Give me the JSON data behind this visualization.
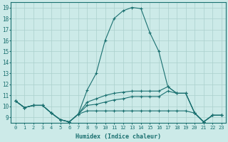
{
  "xlabel": "Humidex (Indice chaleur)",
  "xlim": [
    -0.5,
    23.5
  ],
  "ylim": [
    8.5,
    19.5
  ],
  "yticks": [
    9,
    10,
    11,
    12,
    13,
    14,
    15,
    16,
    17,
    18,
    19
  ],
  "xticks": [
    0,
    1,
    2,
    3,
    4,
    5,
    6,
    7,
    8,
    9,
    10,
    11,
    12,
    13,
    14,
    15,
    16,
    17,
    18,
    19,
    20,
    21,
    22,
    23
  ],
  "bg_color": "#cceae8",
  "grid_color": "#aacfcc",
  "line_color": "#1a7070",
  "lines": [
    {
      "x": [
        0,
        1,
        2,
        3,
        4,
        5,
        6,
        7,
        8,
        9,
        10,
        11,
        12,
        13,
        14,
        15,
        16,
        17,
        18,
        19,
        20,
        21,
        22,
        23
      ],
      "y": [
        10.5,
        9.9,
        10.1,
        10.1,
        9.4,
        8.8,
        8.6,
        9.3,
        11.5,
        13.0,
        16.0,
        18.0,
        18.7,
        19.0,
        18.9,
        16.7,
        15.0,
        11.8,
        11.2,
        11.2,
        9.4,
        8.6,
        9.2,
        9.2
      ]
    },
    {
      "x": [
        0,
        1,
        2,
        3,
        4,
        5,
        6,
        7,
        8,
        9,
        10,
        11,
        12,
        13,
        14,
        15,
        16,
        17,
        18,
        19,
        20,
        21,
        22,
        23
      ],
      "y": [
        10.5,
        9.9,
        10.1,
        10.1,
        9.4,
        8.8,
        8.6,
        9.3,
        10.4,
        10.7,
        11.0,
        11.2,
        11.3,
        11.4,
        11.4,
        11.4,
        11.4,
        11.8,
        11.2,
        11.2,
        9.4,
        8.6,
        9.2,
        9.2
      ]
    },
    {
      "x": [
        0,
        1,
        2,
        3,
        4,
        5,
        6,
        7,
        8,
        9,
        10,
        11,
        12,
        13,
        14,
        15,
        16,
        17,
        18,
        19,
        20,
        21,
        22,
        23
      ],
      "y": [
        10.5,
        9.9,
        10.1,
        10.1,
        9.4,
        8.8,
        8.6,
        9.3,
        10.1,
        10.2,
        10.4,
        10.6,
        10.7,
        10.9,
        10.9,
        10.9,
        10.9,
        11.4,
        11.2,
        11.2,
        9.4,
        8.6,
        9.2,
        9.2
      ]
    },
    {
      "x": [
        0,
        1,
        2,
        3,
        4,
        5,
        6,
        7,
        8,
        9,
        10,
        11,
        12,
        13,
        14,
        15,
        16,
        17,
        18,
        19,
        20,
        21,
        22,
        23
      ],
      "y": [
        10.5,
        9.9,
        10.1,
        10.1,
        9.4,
        8.8,
        8.6,
        9.3,
        9.6,
        9.6,
        9.6,
        9.6,
        9.6,
        9.6,
        9.6,
        9.6,
        9.6,
        9.6,
        9.6,
        9.6,
        9.4,
        8.6,
        9.2,
        9.2
      ]
    }
  ]
}
